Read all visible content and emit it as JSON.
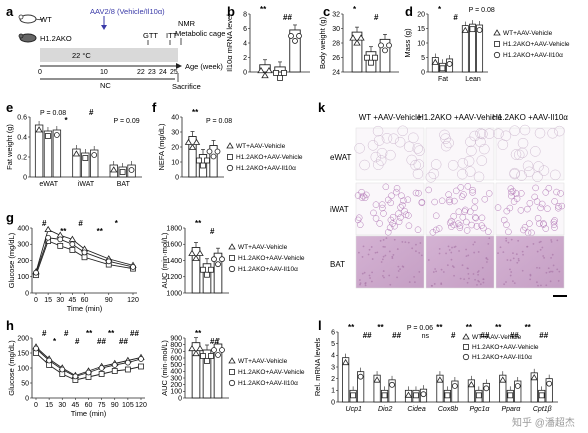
{
  "panels": {
    "a": {
      "letter": "a",
      "wt": "WT",
      "ko": "H1.2AKO",
      "injection": "AAV2/8 (Vehicle/Il10α)",
      "temp": "22 °C",
      "diet": "NC",
      "gtt": "GTT",
      "itt": "ITT",
      "nmr": "NMR",
      "metabolic": "Metabolic cage",
      "age_label": "Age (week)",
      "sacrifice": "Sacrifice",
      "ticks": [
        "0",
        "10",
        "22",
        "23",
        "24",
        "25"
      ]
    },
    "b": {
      "letter": "b"
    },
    "c": {
      "letter": "c"
    },
    "d": {
      "letter": "d"
    },
    "e": {
      "letter": "e"
    },
    "f": {
      "letter": "f"
    },
    "g": {
      "letter": "g"
    },
    "h": {
      "letter": "h"
    },
    "k": {
      "letter": "k",
      "columns": [
        "WT\n+AAV-Vehicle",
        "H1.2AKO\n+AAV-Vehicle",
        "H1.2AKO\n+AAV-Il10α"
      ],
      "rows": [
        "eWAT",
        "iWAT",
        "BAT"
      ]
    },
    "l": {
      "letter": "l"
    }
  },
  "legend": {
    "g1": "WT+AAV-Vehicle",
    "g2": "H1.2AKO+AAV-Vehicle",
    "g3": "H1.2AKO+AAV-Il10α"
  },
  "colors": {
    "bar_fill": "#ffffff",
    "stroke": "#222222",
    "bat_stain": "#c9a4c8",
    "wat_stain": "#b47ab8"
  },
  "watermark": "知乎 @潘超杰",
  "chart_data": [
    {
      "panel": "b",
      "type": "bar",
      "ylabel": "Il10α mRNA level",
      "ylim": [
        0,
        8
      ],
      "yticks": [
        0,
        2,
        4,
        6,
        8
      ],
      "categories": [
        "WT+AAV-Vehicle",
        "H1.2AKO+AAV-Vehicle",
        "H1.2AKO+AAV-Il10α"
      ],
      "values": [
        1.0,
        0.7,
        5.8
      ],
      "annotations": [
        "**",
        "##"
      ]
    },
    {
      "panel": "c",
      "type": "bar",
      "ylabel": "Body weight (g)",
      "ylim": [
        24,
        32
      ],
      "yticks": [
        24,
        26,
        28,
        30,
        32
      ],
      "categories": [
        "WT+AAV-Vehicle",
        "H1.2AKO+AAV-Vehicle",
        "H1.2AKO+AAV-Il10α"
      ],
      "values": [
        29.5,
        26.8,
        28.5
      ],
      "annotations": [
        "*",
        "#"
      ]
    },
    {
      "panel": "d",
      "type": "bar",
      "ylabel": "Mass (g)",
      "ylim": [
        0,
        20
      ],
      "yticks": [
        0,
        5,
        10,
        15,
        20
      ],
      "categories": [
        "Fat",
        "Lean"
      ],
      "series": [
        {
          "name": "WT+AAV-Vehicle",
          "values": [
            5.0,
            16.0
          ]
        },
        {
          "name": "H1.2AKO+AAV-Vehicle",
          "values": [
            3.0,
            16.5
          ]
        },
        {
          "name": "H1.2AKO+AAV-Il10α",
          "values": [
            4.5,
            16.2
          ]
        }
      ],
      "annotations": [
        "*",
        "#",
        "P = 0.08"
      ]
    },
    {
      "panel": "e",
      "type": "bar",
      "ylabel": "Fat weight (g)",
      "ylim": [
        0,
        0.6
      ],
      "yticks": [
        0,
        0.2,
        0.4,
        0.6
      ],
      "categories": [
        "eWAT",
        "iWAT",
        "BAT"
      ],
      "series": [
        {
          "name": "WT+AAV-Vehicle",
          "values": [
            0.52,
            0.28,
            0.12
          ]
        },
        {
          "name": "H1.2AKO+AAV-Vehicle",
          "values": [
            0.46,
            0.24,
            0.1
          ]
        },
        {
          "name": "H1.2AKO+AAV-Il10α",
          "values": [
            0.47,
            0.27,
            0.12
          ]
        }
      ],
      "annotations": [
        "P = 0.08",
        "*",
        "#",
        "P = 0.09"
      ]
    },
    {
      "panel": "f",
      "type": "bar",
      "ylabel": "NEFA (mg/dL)",
      "ylim": [
        0,
        40
      ],
      "yticks": [
        0,
        10,
        20,
        30,
        40
      ],
      "categories": [
        "WT+AAV-Vehicle",
        "H1.2AKO+AAV-Vehicle",
        "H1.2AKO+AAV-Il10α"
      ],
      "values": [
        27,
        15,
        21
      ],
      "annotations": [
        "**",
        "P = 0.08"
      ]
    },
    {
      "panel": "g-left",
      "type": "line",
      "xlabel": "Time (min)",
      "ylabel": "Glucose (mg/dL)",
      "x": [
        0,
        15,
        30,
        45,
        60,
        90,
        120
      ],
      "ylim": [
        0,
        400
      ],
      "yticks": [
        0,
        100,
        200,
        300,
        400
      ],
      "series": [
        {
          "name": "WT+AAV-Vehicle",
          "values": [
            130,
            390,
            355,
            330,
            270,
            210,
            170
          ]
        },
        {
          "name": "H1.2AKO+AAV-Vehicle",
          "values": [
            110,
            320,
            290,
            265,
            220,
            175,
            150
          ]
        },
        {
          "name": "H1.2AKO+AAV-Il10α",
          "values": [
            125,
            340,
            330,
            300,
            250,
            195,
            160
          ]
        }
      ],
      "annotations": [
        "#",
        "**",
        "#",
        "**",
        "*"
      ]
    },
    {
      "panel": "g-right",
      "type": "bar",
      "ylabel": "AUC (min·mol/L)",
      "ylim": [
        1000,
        1800
      ],
      "yticks": [
        1000,
        1200,
        1400,
        1600,
        1800
      ],
      "categories": [
        "WT+AAV-Vehicle",
        "H1.2AKO+AAV-Vehicle",
        "H1.2AKO+AAV-Il10α"
      ],
      "values": [
        1560,
        1360,
        1490
      ],
      "annotations": [
        "**",
        "#"
      ]
    },
    {
      "panel": "h-left",
      "type": "line",
      "xlabel": "Time (min)",
      "ylabel": "Glucose (mg/dL)",
      "x": [
        0,
        15,
        30,
        45,
        60,
        75,
        90,
        105,
        120
      ],
      "ylim": [
        0,
        200
      ],
      "yticks": [
        0,
        50,
        100,
        150,
        200
      ],
      "series": [
        {
          "name": "WT+AAV-Vehicle",
          "values": [
            170,
            130,
            100,
            75,
            90,
            105,
            115,
            125,
            135
          ]
        },
        {
          "name": "H1.2AKO+AAV-Vehicle",
          "values": [
            150,
            110,
            80,
            60,
            70,
            80,
            90,
            95,
            105
          ]
        },
        {
          "name": "H1.2AKO+AAV-Il10α",
          "values": [
            165,
            125,
            95,
            72,
            85,
            100,
            110,
            118,
            130
          ]
        }
      ],
      "annotations": [
        "#",
        "*",
        "#",
        "#",
        "**",
        "##",
        "**",
        "##",
        "##"
      ]
    },
    {
      "panel": "h-right",
      "type": "bar",
      "ylabel": "AUC (min·mol/L)",
      "ylim": [
        0,
        900
      ],
      "yticks": [
        0,
        100,
        200,
        300,
        400,
        500,
        600,
        700,
        800,
        900
      ],
      "categories": [
        "WT+AAV-Vehicle",
        "H1.2AKO+AAV-Vehicle",
        "H1.2AKO+AAV-Il10α"
      ],
      "values": [
        830,
        720,
        810
      ],
      "annotations": [
        "**",
        "##"
      ]
    },
    {
      "panel": "l",
      "type": "bar",
      "ylabel": "Rel. mRNA levels",
      "ylim": [
        0,
        6
      ],
      "yticks": [
        0,
        1,
        2,
        3,
        4,
        5,
        6
      ],
      "categories": [
        "Ucp1",
        "Dio2",
        "Cidea",
        "Cox8b",
        "Pgc1α",
        "Pparα",
        "Cpt1β"
      ],
      "series": [
        {
          "name": "WT+AAV-Vehicle",
          "values": [
            3.8,
            2.3,
            1.0,
            2.3,
            1.9,
            2.3,
            2.5
          ]
        },
        {
          "name": "H1.2AKO+AAV-Vehicle",
          "values": [
            1.0,
            1.0,
            1.0,
            1.0,
            1.0,
            1.0,
            1.0
          ]
        },
        {
          "name": "H1.2AKO+AAV-Il10α",
          "values": [
            2.6,
            1.9,
            1.1,
            1.8,
            1.6,
            1.8,
            2.0
          ]
        }
      ],
      "annotations": [
        "**",
        "##",
        "**",
        "##",
        "P = 0.06",
        "ns",
        "**",
        "#",
        "**",
        "##",
        "**",
        "##",
        "**",
        "##"
      ]
    }
  ]
}
